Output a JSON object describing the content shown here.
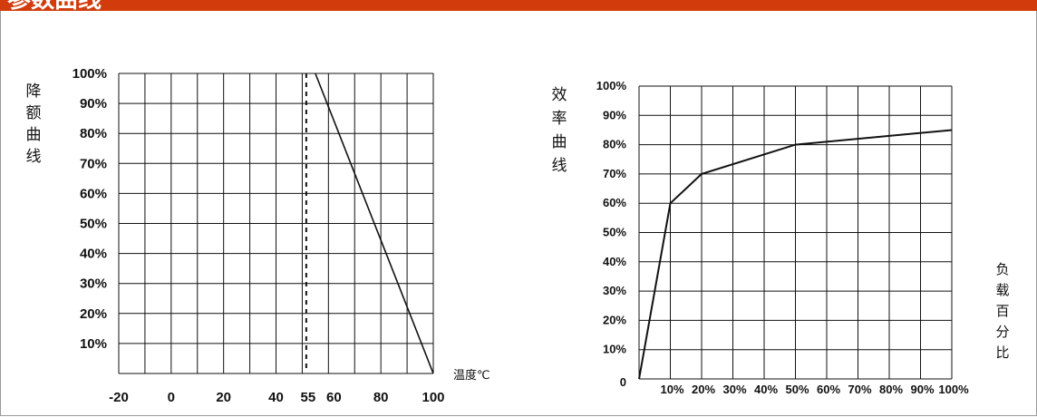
{
  "header": {
    "title": "参数曲线",
    "color": "#d23c0c"
  },
  "chart_data": [
    {
      "type": "line",
      "title": "",
      "ylabel": "降额曲线",
      "xlabel": "温度℃",
      "x_ticks": [
        "-20",
        "0",
        "20",
        "40",
        "55",
        "60",
        "80",
        "100"
      ],
      "y_ticks": [
        "10%",
        "20%",
        "30%",
        "40%",
        "50%",
        "60%",
        "70%",
        "80%",
        "90%",
        "100%"
      ],
      "xlim": [
        -20,
        100
      ],
      "ylim": [
        0,
        100
      ],
      "grid": true,
      "reference_line": {
        "x": 55,
        "style": "dashed"
      },
      "series": [
        {
          "x": [
            55,
            100
          ],
          "y": [
            100,
            0
          ]
        }
      ]
    },
    {
      "type": "line",
      "title": "",
      "ylabel": "效率曲线",
      "xlabel": "负载百分比",
      "x_ticks": [
        "10%",
        "20%",
        "30%",
        "40%",
        "50%",
        "60%",
        "70%",
        "80%",
        "90%",
        "100%"
      ],
      "y_ticks": [
        "0",
        "10%",
        "20%",
        "30%",
        "40%",
        "50%",
        "60%",
        "70%",
        "80%",
        "90%",
        "100%"
      ],
      "xlim": [
        0,
        100
      ],
      "ylim": [
        0,
        100
      ],
      "grid": true,
      "series": [
        {
          "x": [
            0,
            10,
            20,
            50,
            100
          ],
          "y": [
            0,
            60,
            70,
            80,
            85
          ]
        }
      ]
    }
  ]
}
